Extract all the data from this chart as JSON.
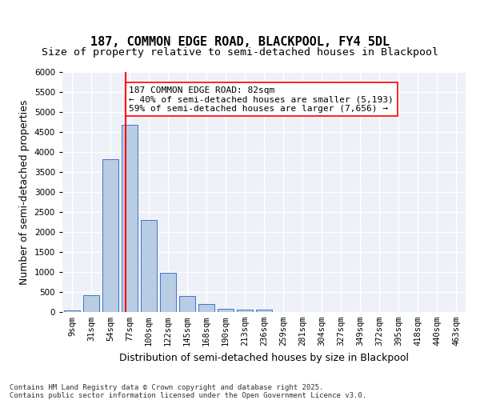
{
  "title1": "187, COMMON EDGE ROAD, BLACKPOOL, FY4 5DL",
  "title2": "Size of property relative to semi-detached houses in Blackpool",
  "xlabel": "Distribution of semi-detached houses by size in Blackpool",
  "ylabel": "Number of semi-detached properties",
  "categories": [
    "9sqm",
    "31sqm",
    "54sqm",
    "77sqm",
    "100sqm",
    "122sqm",
    "145sqm",
    "168sqm",
    "190sqm",
    "213sqm",
    "236sqm",
    "259sqm",
    "281sqm",
    "304sqm",
    "327sqm",
    "349sqm",
    "372sqm",
    "395sqm",
    "418sqm",
    "440sqm",
    "463sqm"
  ],
  "values": [
    50,
    430,
    3820,
    4680,
    2300,
    990,
    400,
    200,
    90,
    70,
    55,
    0,
    0,
    0,
    0,
    0,
    0,
    0,
    0,
    0,
    0
  ],
  "bar_color": "#b8cce4",
  "bar_edge_color": "#4472c4",
  "vline_x": 3,
  "vline_color": "red",
  "annotation_text": "187 COMMON EDGE ROAD: 82sqm\n← 40% of semi-detached houses are smaller (5,193)\n59% of semi-detached houses are larger (7,656) →",
  "annotation_box_color": "white",
  "annotation_box_edge": "red",
  "ylim": [
    0,
    6000
  ],
  "yticks": [
    0,
    500,
    1000,
    1500,
    2000,
    2500,
    3000,
    3500,
    4000,
    4500,
    5000,
    5500,
    6000
  ],
  "background_color": "#eef2f8",
  "grid_color": "white",
  "footnote": "Contains HM Land Registry data © Crown copyright and database right 2025.\nContains public sector information licensed under the Open Government Licence v3.0.",
  "title_fontsize": 11,
  "subtitle_fontsize": 9.5,
  "axis_label_fontsize": 9,
  "tick_fontsize": 7.5,
  "annot_fontsize": 8
}
